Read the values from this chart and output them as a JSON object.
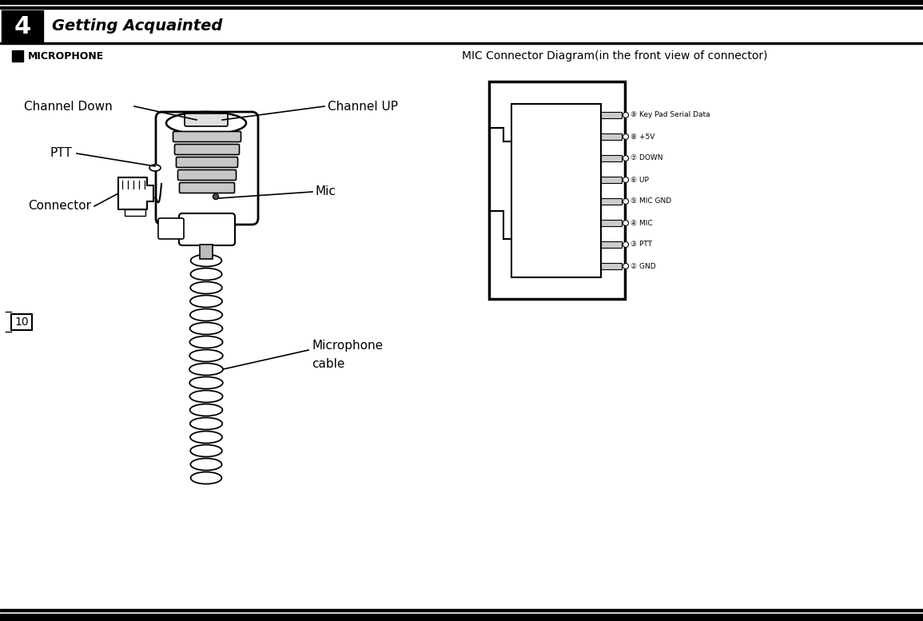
{
  "title_chapter": "4",
  "title_text": "Getting Acquainted",
  "section_label": "MICROPHONE",
  "mic_connector_title": "MIC Connector Diagram(in the front view of connector)",
  "page_number": "10",
  "connector_pins": [
    "⑨ Key Pad Serial Data",
    "⑧ +5V",
    "⑦ DOWN",
    "⑥ UP",
    "⑤ MIC GND",
    "④ MIC",
    "③ PTT",
    "② GND"
  ],
  "bg_color": "#ffffff",
  "header_bg": "#000000",
  "header_text_color": "#ffffff",
  "body_text_color": "#000000",
  "top_bar_color": "#000000",
  "line_color": "#000000",
  "label_fontsize": 11,
  "pin_fontsize": 6.5
}
